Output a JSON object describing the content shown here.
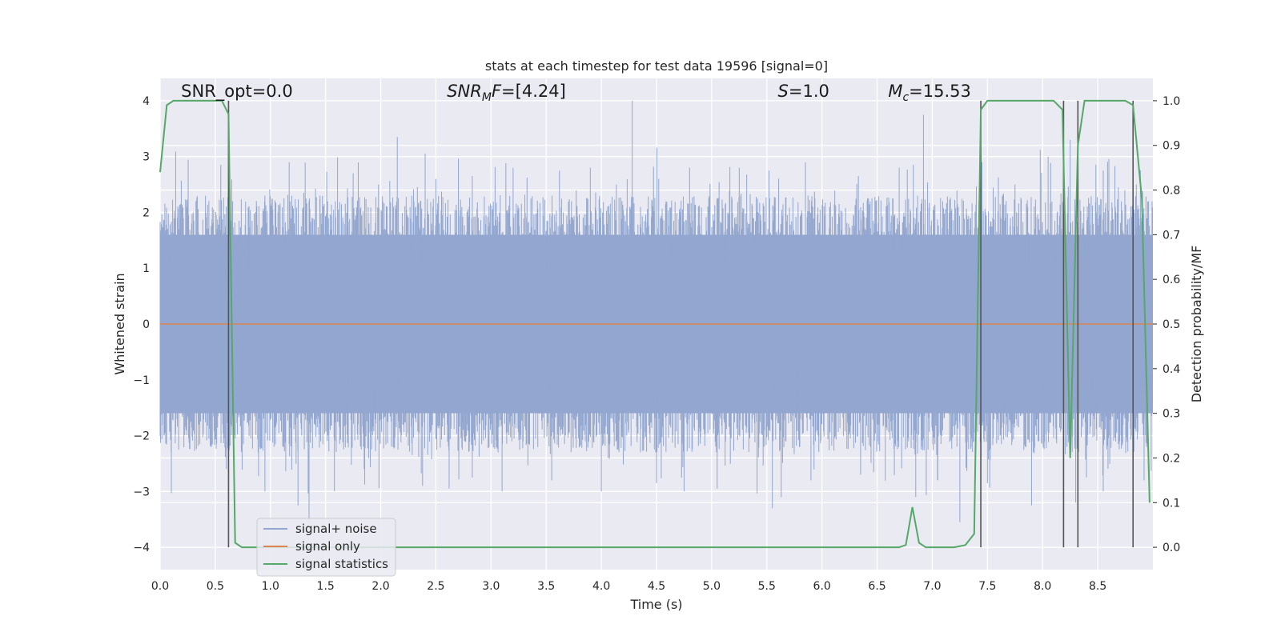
{
  "chart_data": {
    "type": "line",
    "title": "stats at each timestep for test data 19596 [signal=0]",
    "xlabel": "Time (s)",
    "ylabel": "Whitened strain",
    "y2label": "Detection probability/MF",
    "xlim": [
      0,
      9.0
    ],
    "ylim": [
      -4.4,
      4.4
    ],
    "y2lim": [
      -0.05,
      1.05
    ],
    "grid": true,
    "legend_position": "lower-left",
    "x_ticks": [
      "0.0",
      "0.5",
      "1.0",
      "1.5",
      "2.0",
      "2.5",
      "3.0",
      "3.5",
      "4.0",
      "4.5",
      "5.0",
      "5.5",
      "6.0",
      "6.5",
      "7.0",
      "7.5",
      "8.0",
      "8.5"
    ],
    "y_ticks": [
      "−4",
      "−3",
      "−2",
      "−1",
      "0",
      "1",
      "2",
      "3",
      "4"
    ],
    "y2_ticks": [
      "0.0",
      "0.1",
      "0.2",
      "0.3",
      "0.4",
      "0.5",
      "0.6",
      "0.7",
      "0.8",
      "0.9",
      "1.0"
    ],
    "annotations": [
      {
        "text": "SNR_opt=0.0",
        "x": 0.19
      },
      {
        "text": "SNR_MF=[4.24]",
        "x": 2.6
      },
      {
        "text": "S=1.0",
        "x": 5.6
      },
      {
        "text": "M_c=15.53",
        "x": 6.6
      }
    ],
    "series": [
      {
        "name": "signal+ noise",
        "color": "#92a6cf",
        "style": "noise-fill",
        "band_inner": 1.6,
        "peaks_high": [
          [
            0.02,
            1.7
          ],
          [
            0.3,
            2.0
          ],
          [
            0.55,
            2.85
          ],
          [
            0.95,
            2.3
          ],
          [
            1.17,
            2.9
          ],
          [
            1.45,
            2.3
          ],
          [
            1.75,
            2.7
          ],
          [
            1.98,
            2.5
          ],
          [
            2.15,
            3.35
          ],
          [
            2.5,
            2.6
          ],
          [
            2.83,
            2.65
          ],
          [
            3.2,
            2.8
          ],
          [
            3.62,
            2.75
          ],
          [
            3.9,
            2.8
          ],
          [
            4.28,
            4.0
          ],
          [
            4.52,
            2.6
          ],
          [
            4.8,
            2.8
          ],
          [
            5.25,
            2.8
          ],
          [
            5.52,
            2.75
          ],
          [
            5.85,
            2.9
          ],
          [
            6.33,
            2.65
          ],
          [
            6.7,
            2.8
          ],
          [
            6.92,
            3.75
          ],
          [
            7.45,
            2.9
          ],
          [
            7.75,
            2.5
          ],
          [
            8.05,
            3.0
          ],
          [
            8.25,
            3.3
          ],
          [
            8.55,
            2.75
          ],
          [
            8.85,
            2.5
          ]
        ],
        "peaks_low": [
          [
            0.02,
            -1.7
          ],
          [
            0.1,
            -2.3
          ],
          [
            0.6,
            -2.6
          ],
          [
            0.95,
            -3.0
          ],
          [
            1.25,
            -3.25
          ],
          [
            1.35,
            -3.55
          ],
          [
            1.58,
            -3.0
          ],
          [
            1.85,
            -2.6
          ],
          [
            2.62,
            -2.95
          ],
          [
            2.83,
            -2.75
          ],
          [
            3.1,
            -3.0
          ],
          [
            3.55,
            -2.8
          ],
          [
            4.0,
            -3.0
          ],
          [
            4.5,
            -2.85
          ],
          [
            4.75,
            -3.0
          ],
          [
            5.05,
            -2.95
          ],
          [
            5.55,
            -3.3
          ],
          [
            5.9,
            -2.8
          ],
          [
            6.35,
            -2.7
          ],
          [
            6.85,
            -3.1
          ],
          [
            7.05,
            -2.8
          ],
          [
            7.25,
            -3.55
          ],
          [
            7.5,
            -2.85
          ],
          [
            7.9,
            -3.25
          ],
          [
            8.3,
            -3.2
          ],
          [
            8.55,
            -3.0
          ],
          [
            8.92,
            -2.8
          ]
        ]
      },
      {
        "name": "signal only",
        "color": "#dd8452",
        "x": [
          0,
          9.0
        ],
        "y": [
          0,
          0
        ]
      },
      {
        "name": "signal statistics",
        "color": "#55a868",
        "axis": "right",
        "x": [
          0.0,
          0.06,
          0.12,
          0.2,
          0.3,
          0.4,
          0.5,
          0.56,
          0.62,
          0.68,
          0.74,
          0.8,
          1.5,
          2.5,
          3.5,
          4.5,
          5.5,
          6.5,
          6.7,
          6.76,
          6.82,
          6.88,
          6.94,
          7.0,
          7.1,
          7.2,
          7.3,
          7.38,
          7.44,
          7.5,
          7.56,
          7.62,
          7.8,
          8.0,
          8.1,
          8.18,
          8.25,
          8.32,
          8.38,
          8.45,
          8.6,
          8.75,
          8.82,
          8.9,
          8.97
        ],
        "y": [
          0.84,
          0.99,
          1.0,
          1.0,
          1.0,
          1.0,
          1.0,
          1.0,
          0.97,
          0.01,
          0.0,
          0.0,
          0.0,
          0.0,
          0.0,
          0.0,
          0.0,
          0.0,
          0.0,
          0.005,
          0.09,
          0.01,
          0.0,
          0.0,
          0.0,
          0.0,
          0.005,
          0.03,
          0.98,
          1.0,
          1.0,
          1.0,
          1.0,
          1.0,
          1.0,
          0.98,
          0.2,
          0.9,
          1.0,
          1.0,
          1.0,
          1.0,
          0.99,
          0.78,
          0.1
        ]
      }
    ],
    "vertical_lines": [
      0.62,
      7.44,
      8.19,
      8.32,
      8.82
    ]
  }
}
